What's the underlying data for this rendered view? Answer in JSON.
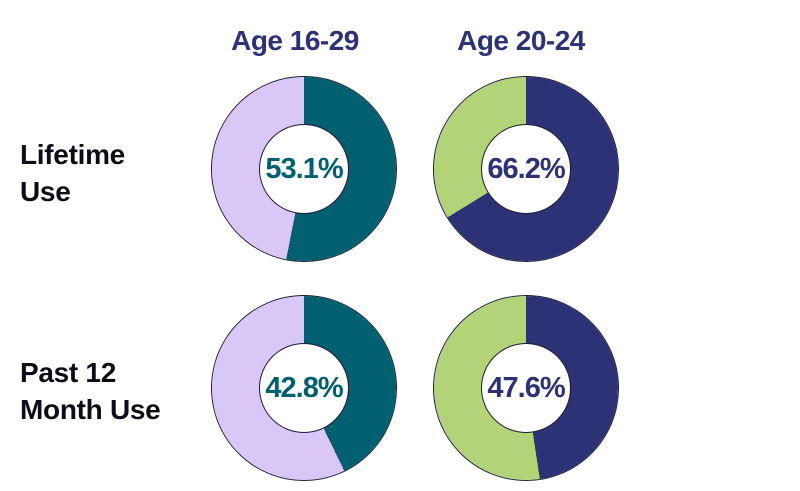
{
  "page": {
    "background": "#ffffff"
  },
  "chart_data": {
    "type": "pie",
    "subtype": "donut-grid",
    "columns": [
      "Age 16-29",
      "Age 20-24"
    ],
    "rows": [
      {
        "label": "Lifetime Use",
        "label_lines": [
          "Lifetime",
          "Use"
        ]
      },
      {
        "label": "Past 12 Month Use",
        "label_lines": [
          "Past 12",
          "Month Use"
        ]
      }
    ],
    "donuts": [
      {
        "row": "Lifetime Use",
        "column": "Age 16-29",
        "value": 53.1,
        "remainder": 46.9,
        "label": "53.1%",
        "main_color": "#00606f",
        "rest_color": "#d9c7f7",
        "text_color": "#00606f"
      },
      {
        "row": "Lifetime Use",
        "column": "Age 20-24",
        "value": 66.2,
        "remainder": 33.8,
        "label": "66.2%",
        "main_color": "#2d3277",
        "rest_color": "#b2d378",
        "text_color": "#2d3277"
      },
      {
        "row": "Past 12 Month Use",
        "column": "Age 16-29",
        "value": 42.8,
        "remainder": 57.2,
        "label": "42.8%",
        "main_color": "#00606f",
        "rest_color": "#d9c7f7",
        "text_color": "#00606f"
      },
      {
        "row": "Past 12 Month Use",
        "column": "Age 20-24",
        "value": 47.6,
        "remainder": 52.4,
        "label": "47.6%",
        "main_color": "#2d3277",
        "rest_color": "#b2d378",
        "text_color": "#2d3277"
      }
    ],
    "layout": {
      "start_angle_deg": 0,
      "direction": "clockwise",
      "grid": "off",
      "legend": "none"
    },
    "colors": {
      "teal": "#00606f",
      "lavender": "#d9c7f7",
      "navy": "#2d3277",
      "green": "#b2d378",
      "ring_outline": "#1b1b36",
      "header_text": "#2d3277",
      "row_label_text": "#0d0d18",
      "background": "#ffffff"
    }
  }
}
